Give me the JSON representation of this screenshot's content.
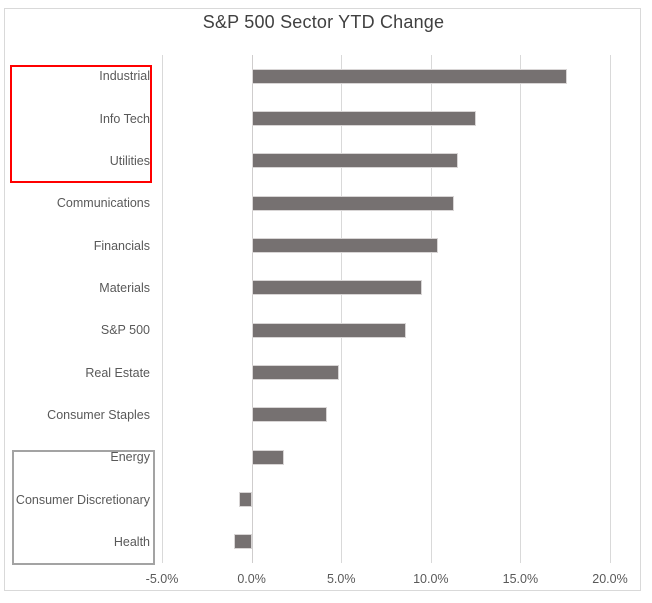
{
  "chart_data": {
    "type": "bar",
    "orientation": "horizontal",
    "title": "S&P 500 Sector YTD Change",
    "categories": [
      "Industrial",
      "Info Tech",
      "Utilities",
      "Communications",
      "Financials",
      "Materials",
      "S&P 500",
      "Real Estate",
      "Consumer Staples",
      "Energy",
      "Consumer Discretionary",
      "Health"
    ],
    "values": [
      17.6,
      12.5,
      11.5,
      11.3,
      10.4,
      9.5,
      8.6,
      4.9,
      4.2,
      1.8,
      -0.7,
      -1.0
    ],
    "value_unit": "%",
    "xlabel": "",
    "ylabel": "",
    "x_ticks": [
      "-5.0%",
      "0.0%",
      "5.0%",
      "10.0%",
      "15.0%",
      "20.0%"
    ],
    "x_tick_values": [
      -5,
      0,
      5,
      10,
      15,
      20
    ],
    "xlim": [
      -5,
      20
    ],
    "grid": true,
    "legend": "none",
    "colors": {
      "bar_fill": "#767171",
      "bar_outline": "#d8d5d5",
      "gridline": "#d9d9d9",
      "axis_label": "#595959",
      "title": "#404040",
      "chart_border": "#d9d9d9"
    },
    "annotations": [
      {
        "name": "red-highlight-box",
        "covers_categories": [
          "Industrial",
          "Info Tech",
          "Utilities"
        ],
        "border_color": "#ff0000",
        "border_width": 2
      },
      {
        "name": "gray-highlight-box",
        "covers_categories": [
          "Energy",
          "Consumer Discretionary",
          "Health"
        ],
        "border_color": "#a3a3a3",
        "border_width": 2
      }
    ]
  }
}
